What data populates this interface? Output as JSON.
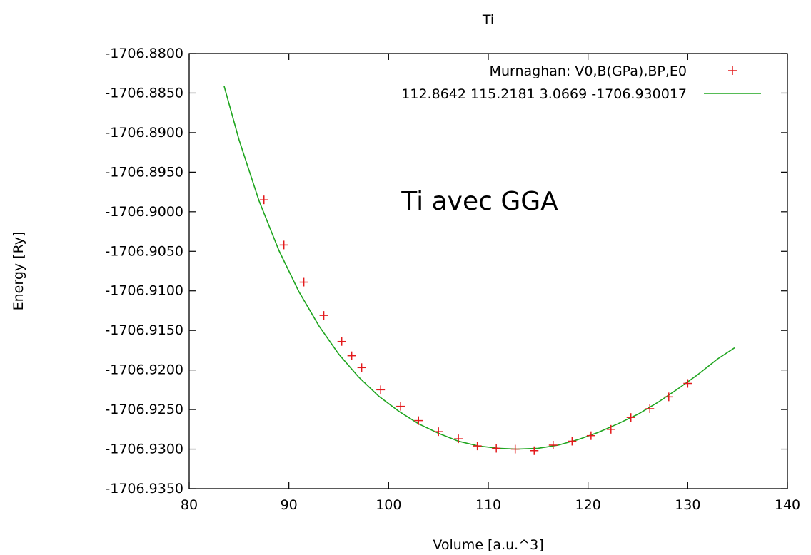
{
  "chart_data": {
    "type": "scatter",
    "title": "Ti",
    "xlabel": "Volume [a.u.^3]",
    "ylabel": "Energy [Ry]",
    "xlim": [
      80,
      140
    ],
    "ylim": [
      -1706.935,
      -1706.88
    ],
    "x_ticks": [
      "80",
      "90",
      "100",
      "110",
      "120",
      "130",
      "140"
    ],
    "x_tick_values": [
      80,
      90,
      100,
      110,
      120,
      130,
      140
    ],
    "y_ticks": [
      "-1706.8800",
      "-1706.8850",
      "-1706.8900",
      "-1706.8950",
      "-1706.9000",
      "-1706.9050",
      "-1706.9100",
      "-1706.9150",
      "-1706.9200",
      "-1706.9250",
      "-1706.9300",
      "-1706.9350"
    ],
    "y_tick_values": [
      -1706.88,
      -1706.885,
      -1706.89,
      -1706.895,
      -1706.9,
      -1706.905,
      -1706.91,
      -1706.915,
      -1706.92,
      -1706.925,
      -1706.93,
      -1706.935
    ],
    "annotation": "Ti avec GGA",
    "legend_position": "top-right",
    "grid": false,
    "series": [
      {
        "name": "Murnaghan: V0,B(GPa),BP,E0",
        "kind": "points",
        "marker": "+",
        "color": "#e31a1c",
        "x": [
          87.5,
          89.5,
          91.5,
          93.5,
          95.3,
          96.3,
          97.3,
          99.2,
          101.2,
          103.0,
          105.0,
          107.0,
          108.9,
          110.8,
          112.7,
          114.6,
          116.5,
          118.4,
          120.3,
          122.3,
          124.3,
          126.2,
          128.1,
          130.0
        ],
        "y": [
          -1706.8985,
          -1706.9042,
          -1706.9089,
          -1706.9131,
          -1706.9164,
          -1706.9182,
          -1706.9197,
          -1706.9225,
          -1706.9246,
          -1706.9264,
          -1706.9278,
          -1706.9287,
          -1706.9296,
          -1706.9299,
          -1706.93,
          -1706.9302,
          -1706.9295,
          -1706.929,
          -1706.9283,
          -1706.9275,
          -1706.926,
          -1706.9249,
          -1706.9234,
          -1706.9217
        ]
      },
      {
        "name": "112.8642 115.2181 3.0669 -1706.930017",
        "kind": "line",
        "color": "#1fa51f",
        "x": [
          83.5,
          85,
          87,
          89,
          91,
          93,
          95,
          97,
          99,
          101,
          103,
          105,
          107,
          109,
          111,
          112.86,
          115,
          117,
          119,
          121,
          123,
          125,
          127,
          129,
          131,
          133,
          134.7
        ],
        "y": [
          -1706.8841,
          -1706.8909,
          -1706.8986,
          -1706.9049,
          -1706.9101,
          -1706.9144,
          -1706.918,
          -1706.9209,
          -1706.9233,
          -1706.9252,
          -1706.9268,
          -1706.928,
          -1706.929,
          -1706.9296,
          -1706.9299,
          -1706.93,
          -1706.9299,
          -1706.9295,
          -1706.9288,
          -1706.9279,
          -1706.9268,
          -1706.9256,
          -1706.9241,
          -1706.9224,
          -1706.9206,
          -1706.9186,
          -1706.9172
        ]
      }
    ]
  }
}
